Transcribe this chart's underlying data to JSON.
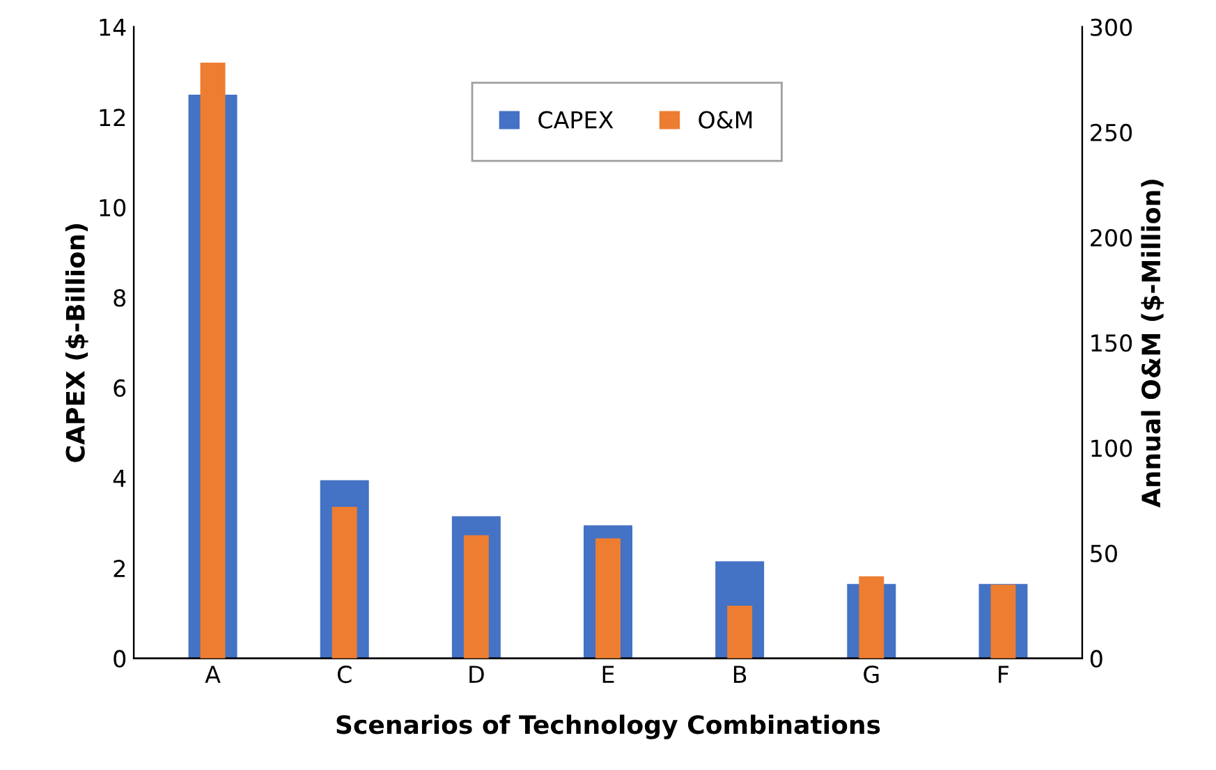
{
  "chart_data": {
    "type": "bar",
    "xlabel": "Scenarios of Technology Combinations",
    "ylabel": "CAPEX ($-Billion)",
    "y2label": "Annual O&M ($-Million)",
    "categories": [
      "A",
      "C",
      "D",
      "E",
      "B",
      "G",
      "F"
    ],
    "series": [
      {
        "name": "CAPEX",
        "color": "#4472c4",
        "values": [
          12.5,
          3.95,
          3.15,
          2.95,
          2.15,
          1.65,
          1.65
        ]
      },
      {
        "name": "O&M",
        "color": "#ed7d31",
        "axis": "y2",
        "values": [
          283,
          72,
          58.5,
          57,
          25,
          39,
          35
        ]
      }
    ],
    "ylim": [
      0,
      14
    ],
    "yticks": [
      0,
      2,
      4,
      6,
      8,
      10,
      12,
      14
    ],
    "y2lim": [
      0,
      300
    ],
    "y2ticks": [
      0,
      50,
      100,
      150,
      200,
      250,
      300
    ],
    "grid": false,
    "legend": "top"
  }
}
